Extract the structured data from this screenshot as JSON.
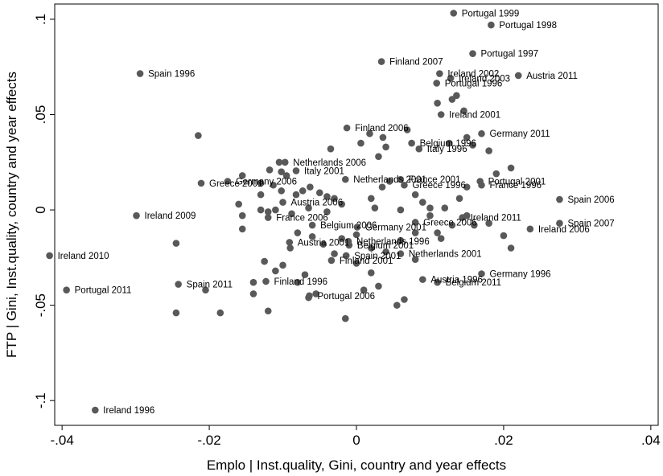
{
  "chart_data": {
    "type": "scatter",
    "xlabel": "Emplo | Inst.quality, Gini, country and year effects",
    "ylabel": "FTP | Gini, Inst.quality, country and year effects",
    "xlim": [
      -0.041,
      0.041
    ],
    "ylim": [
      -0.113,
      0.108
    ],
    "x_ticks": [
      -0.04,
      -0.02,
      0,
      0.02,
      0.04
    ],
    "x_tick_labels": [
      "-.04",
      "-.02",
      "0",
      ".02",
      ".04"
    ],
    "y_ticks": [
      -0.1,
      -0.05,
      0,
      0.05,
      0.1
    ],
    "y_tick_labels": [
      "-.1",
      "-.05",
      "0",
      ".05",
      ".1"
    ],
    "grid": false,
    "marker_color": "#595959",
    "labeled_points": [
      {
        "label": "Portugal 1999",
        "x": 0.0132,
        "y": 0.1032
      },
      {
        "label": "Portugal 1998",
        "x": 0.0183,
        "y": 0.097
      },
      {
        "label": "Portugal 1997",
        "x": 0.0158,
        "y": 0.082
      },
      {
        "label": "Finland 2007",
        "x": 0.0034,
        "y": 0.0778
      },
      {
        "label": "Spain 1996",
        "x": -0.0294,
        "y": 0.0715
      },
      {
        "label": "Ireland 2002",
        "x": 0.0113,
        "y": 0.0715
      },
      {
        "label": "Austria 2011",
        "x": 0.022,
        "y": 0.0705
      },
      {
        "label": "Ireland 2003",
        "x": 0.0128,
        "y": 0.069
      },
      {
        "label": "Portugal 1996",
        "x": 0.0109,
        "y": 0.0665
      },
      {
        "label": "Ireland 2001",
        "x": 0.0115,
        "y": 0.05
      },
      {
        "label": "Finland 2006",
        "x": -0.0013,
        "y": 0.043
      },
      {
        "label": "Germany 2011",
        "x": 0.017,
        "y": 0.04
      },
      {
        "label": "Belgium 1996",
        "x": 0.0075,
        "y": 0.035
      },
      {
        "label": "Italy 1996",
        "x": 0.0085,
        "y": 0.032
      },
      {
        "label": "Netherlands 2006",
        "x": -0.0097,
        "y": 0.025
      },
      {
        "label": "Italy 2001",
        "x": -0.0082,
        "y": 0.0205
      },
      {
        "label": "Netherlands 2001",
        "x": -0.0015,
        "y": 0.016
      },
      {
        "label": "France 2001",
        "x": 0.006,
        "y": 0.016
      },
      {
        "label": "Portugal 2001",
        "x": 0.0168,
        "y": 0.015
      },
      {
        "label": "Germany 2006",
        "x": -0.0175,
        "y": 0.015
      },
      {
        "label": "Greece 2001",
        "x": -0.0211,
        "y": 0.014
      },
      {
        "label": "Greece 1996",
        "x": 0.0065,
        "y": 0.013
      },
      {
        "label": "France 1996",
        "x": 0.017,
        "y": 0.013
      },
      {
        "label": "Spain 2006",
        "x": 0.0276,
        "y": 0.0055
      },
      {
        "label": "Austria 2006",
        "x": -0.01,
        "y": 0.004
      },
      {
        "label": "Ireland 2009",
        "x": -0.0299,
        "y": -0.003
      },
      {
        "label": "France 2006",
        "x": -0.012,
        "y": -0.004
      },
      {
        "label": "Ireland 2011",
        "x": 0.0144,
        "y": -0.004
      },
      {
        "label": "Greece 2006",
        "x": 0.008,
        "y": -0.0065
      },
      {
        "label": "Spain 2007",
        "x": 0.0276,
        "y": -0.007
      },
      {
        "label": "Belgium 2006",
        "x": -0.006,
        "y": -0.008
      },
      {
        "label": "Germany 2001",
        "x": 0.0001,
        "y": -0.009
      },
      {
        "label": "Ireland 2006",
        "x": 0.0236,
        "y": -0.01
      },
      {
        "label": "Austria 2001",
        "x": -0.0091,
        "y": -0.017
      },
      {
        "label": "Netherlands 1996",
        "x": -0.0011,
        "y": -0.0165
      },
      {
        "label": "Belgium 2001",
        "x": -0.001,
        "y": -0.0185
      },
      {
        "label": "Netherlands 2001",
        "x": 0.006,
        "y": -0.023
      },
      {
        "label": "Spain 2001",
        "x": -0.0014,
        "y": -0.024
      },
      {
        "label": "Finland 2001",
        "x": -0.0034,
        "y": -0.0265
      },
      {
        "label": "Ireland 2010",
        "x": -0.0417,
        "y": -0.024
      },
      {
        "label": "Germany 1996",
        "x": 0.017,
        "y": -0.0335
      },
      {
        "label": "Austria 1996",
        "x": 0.009,
        "y": -0.0365
      },
      {
        "label": "Finland 1996",
        "x": -0.0123,
        "y": -0.0375
      },
      {
        "label": "Belgium 2011",
        "x": 0.011,
        "y": -0.038
      },
      {
        "label": "Spain 2011",
        "x": -0.0242,
        "y": -0.039
      },
      {
        "label": "Portugal 2011",
        "x": -0.0394,
        "y": -0.042
      },
      {
        "label": "Portugal 2006",
        "x": -0.0064,
        "y": -0.045
      },
      {
        "label": "Ireland 1996",
        "x": -0.0355,
        "y": -0.105
      }
    ],
    "unlabeled_points": [
      [
        -0.0215,
        0.039
      ],
      [
        0.0018,
        0.04
      ],
      [
        0.0036,
        0.038
      ],
      [
        0.0069,
        0.042
      ],
      [
        0.0136,
        0.06
      ],
      [
        0.011,
        0.056
      ],
      [
        0.013,
        0.058
      ],
      [
        0.0146,
        0.052
      ],
      [
        0.004,
        0.033
      ],
      [
        0.003,
        0.028
      ],
      [
        0.0006,
        0.035
      ],
      [
        -0.0035,
        0.032
      ],
      [
        0.0126,
        0.035
      ],
      [
        0.0158,
        0.034
      ],
      [
        0.015,
        0.038
      ],
      [
        0.018,
        0.031
      ],
      [
        -0.0105,
        0.025
      ],
      [
        -0.0118,
        0.021
      ],
      [
        -0.0102,
        0.02
      ],
      [
        -0.0095,
        0.018
      ],
      [
        -0.0113,
        0.013
      ],
      [
        -0.0102,
        0.01
      ],
      [
        -0.0082,
        0.008
      ],
      [
        -0.0073,
        0.01
      ],
      [
        -0.0063,
        0.012
      ],
      [
        -0.005,
        0.009
      ],
      [
        -0.004,
        0.007
      ],
      [
        -0.003,
        0.006
      ],
      [
        -0.0155,
        0.018
      ],
      [
        -0.013,
        0.014
      ],
      [
        -0.013,
        0.008
      ],
      [
        -0.016,
        0.003
      ],
      [
        -0.0155,
        -0.003
      ],
      [
        -0.0155,
        -0.01
      ],
      [
        -0.013,
        0.0
      ],
      [
        -0.012,
        -0.001
      ],
      [
        -0.011,
        0.0
      ],
      [
        -0.0088,
        -0.002
      ],
      [
        -0.0065,
        0.001
      ],
      [
        -0.004,
        -0.001
      ],
      [
        0.002,
        0.006
      ],
      [
        0.0035,
        0.012
      ],
      [
        0.0045,
        0.015
      ],
      [
        0.008,
        0.008
      ],
      [
        0.009,
        0.004
      ],
      [
        0.01,
        0.001
      ],
      [
        0.012,
        0.001
      ],
      [
        0.014,
        0.006
      ],
      [
        0.019,
        0.019
      ],
      [
        0.021,
        0.022
      ],
      [
        0.015,
        0.012
      ],
      [
        0.015,
        -0.003
      ],
      [
        0.013,
        -0.008
      ],
      [
        0.0115,
        -0.015
      ],
      [
        0.008,
        -0.012
      ],
      [
        0.006,
        -0.016
      ],
      [
        0.0,
        -0.013
      ],
      [
        -0.002,
        -0.015
      ],
      [
        -0.0045,
        -0.018
      ],
      [
        -0.006,
        -0.014
      ],
      [
        -0.008,
        -0.012
      ],
      [
        -0.009,
        -0.02
      ],
      [
        -0.01,
        -0.029
      ],
      [
        -0.011,
        -0.032
      ],
      [
        -0.0125,
        -0.027
      ],
      [
        -0.014,
        -0.038
      ],
      [
        -0.014,
        -0.044
      ],
      [
        -0.012,
        -0.053
      ],
      [
        -0.0185,
        -0.054
      ],
      [
        -0.0205,
        -0.042
      ],
      [
        -0.0245,
        -0.0175
      ],
      [
        -0.0245,
        -0.054
      ],
      [
        -0.0065,
        -0.046
      ],
      [
        -0.0055,
        -0.044
      ],
      [
        0.001,
        -0.042
      ],
      [
        0.003,
        -0.04
      ],
      [
        0.0065,
        -0.047
      ],
      [
        0.0055,
        -0.05
      ],
      [
        -0.0015,
        -0.057
      ],
      [
        0.008,
        -0.026
      ],
      [
        0.004,
        -0.022
      ],
      [
        0.002,
        -0.02
      ],
      [
        0.018,
        -0.007
      ],
      [
        0.021,
        -0.02
      ],
      [
        0.02,
        -0.0135
      ],
      [
        0.002,
        -0.033
      ],
      [
        0.0,
        -0.028
      ],
      [
        -0.003,
        -0.023
      ],
      [
        -0.007,
        -0.034
      ],
      [
        -0.008,
        -0.038
      ],
      [
        0.01,
        -0.003
      ],
      [
        0.011,
        -0.012
      ],
      [
        0.016,
        -0.008
      ],
      [
        0.006,
        0.0
      ],
      [
        0.0025,
        0.001
      ],
      [
        -0.002,
        0.003
      ]
    ]
  }
}
